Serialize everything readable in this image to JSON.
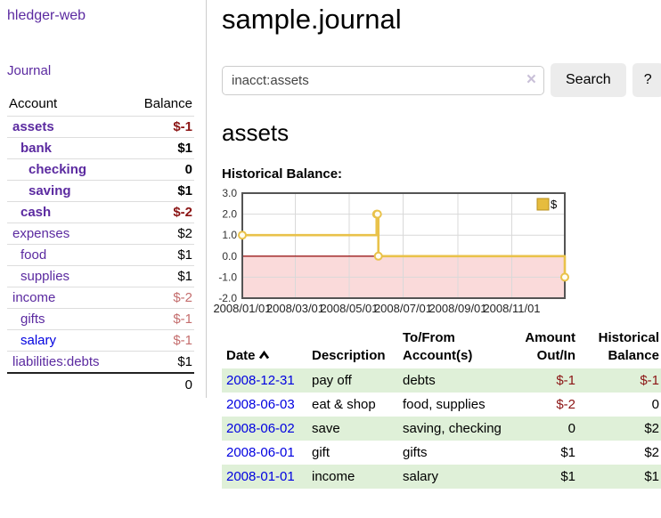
{
  "sidebar": {
    "app_title": "hledger-web",
    "journal_link": "Journal",
    "accounts": {
      "col_account": "Account",
      "col_balance": "Balance",
      "rows": [
        {
          "name": "assets",
          "depth": 0,
          "bold": true,
          "balance": "$-1",
          "balance_tone": "neg-strong",
          "link_tone": "purple"
        },
        {
          "name": "bank",
          "depth": 1,
          "bold": true,
          "balance": "$1",
          "balance_tone": "",
          "link_tone": "purple"
        },
        {
          "name": "checking",
          "depth": 2,
          "bold": true,
          "balance": "0",
          "balance_tone": "",
          "link_tone": "purple"
        },
        {
          "name": "saving",
          "depth": 2,
          "bold": true,
          "balance": "$1",
          "balance_tone": "",
          "link_tone": "purple"
        },
        {
          "name": "cash",
          "depth": 1,
          "bold": true,
          "balance": "$-2",
          "balance_tone": "neg-strong",
          "link_tone": "purple"
        },
        {
          "name": "expenses",
          "depth": 0,
          "bold": false,
          "balance": "$2",
          "balance_tone": "",
          "link_tone": "purple"
        },
        {
          "name": "food",
          "depth": 1,
          "bold": false,
          "balance": "$1",
          "balance_tone": "",
          "link_tone": "purple"
        },
        {
          "name": "supplies",
          "depth": 1,
          "bold": false,
          "balance": "$1",
          "balance_tone": "",
          "link_tone": "purple"
        },
        {
          "name": "income",
          "depth": 0,
          "bold": false,
          "balance": "$-2",
          "balance_tone": "neg-soft",
          "link_tone": "purple"
        },
        {
          "name": "gifts",
          "depth": 1,
          "bold": false,
          "balance": "$-1",
          "balance_tone": "neg-soft",
          "link_tone": "purple"
        },
        {
          "name": "salary",
          "depth": 1,
          "bold": false,
          "balance": "$-1",
          "balance_tone": "neg-soft",
          "link_tone": "blue"
        },
        {
          "name": "liabilities:debts",
          "depth": 0,
          "bold": false,
          "balance": "$1",
          "balance_tone": "",
          "link_tone": "purple"
        }
      ],
      "total": "0"
    }
  },
  "main": {
    "title": "sample.journal",
    "search": {
      "value": "inacct:assets",
      "clear_icon": "×",
      "button_label": "Search",
      "help_label": "?"
    },
    "account_heading": "assets"
  },
  "chart_data": {
    "type": "line",
    "title": "Historical Balance:",
    "step": true,
    "ylim": [
      -2,
      3
    ],
    "y_ticks": [
      "3.0",
      "2.0",
      "1.0",
      "0.0",
      "-1.0",
      "-2.0"
    ],
    "x_range_days": 365,
    "x_ticks": [
      {
        "label": "2008/01/01",
        "day": 0
      },
      {
        "label": "2008/03/01",
        "day": 60
      },
      {
        "label": "2008/05/01",
        "day": 121
      },
      {
        "label": "2008/07/01",
        "day": 182
      },
      {
        "label": "2008/09/01",
        "day": 244
      },
      {
        "label": "2008/11/01",
        "day": 305
      }
    ],
    "series": [
      {
        "name": "$",
        "points": [
          {
            "date": "2008-01-01",
            "day": 0,
            "value": 1
          },
          {
            "date": "2008-06-01",
            "day": 152,
            "value": 2
          },
          {
            "date": "2008-06-02",
            "day": 153,
            "value": 2
          },
          {
            "date": "2008-06-03",
            "day": 154,
            "value": 0
          },
          {
            "date": "2008-12-31",
            "day": 365,
            "value": -1
          }
        ]
      }
    ],
    "legend": {
      "label": "$",
      "position": "top-right"
    },
    "grid": true,
    "colors": {
      "line": "#e9c24a",
      "marker_fill": "#fffdf2",
      "grid": "#d9d9d9",
      "border": "#545454",
      "negative_fill": "#fadada",
      "zero_line": "#9b1b1b",
      "legend_fill": "#e6bc3e",
      "legend_border": "#b8901f"
    }
  },
  "register": {
    "headers": {
      "date": "Date",
      "description": "Description",
      "accounts": "To/From Account(s)",
      "amount": "Amount Out/In",
      "balance": "Historical Balance"
    },
    "rows": [
      {
        "date": "2008-12-31",
        "description": "pay off",
        "accounts": "debts",
        "amount": "$-1",
        "balance": "$-1"
      },
      {
        "date": "2008-06-03",
        "description": "eat & shop",
        "accounts": "food, supplies",
        "amount": "$-2",
        "balance": "0"
      },
      {
        "date": "2008-06-02",
        "description": "save",
        "accounts": "saving, checking",
        "amount": "0",
        "balance": "$2"
      },
      {
        "date": "2008-06-01",
        "description": "gift",
        "accounts": "gifts",
        "amount": "$1",
        "balance": "$2"
      },
      {
        "date": "2008-01-01",
        "description": "income",
        "accounts": "salary",
        "amount": "$1",
        "balance": "$1"
      }
    ]
  }
}
